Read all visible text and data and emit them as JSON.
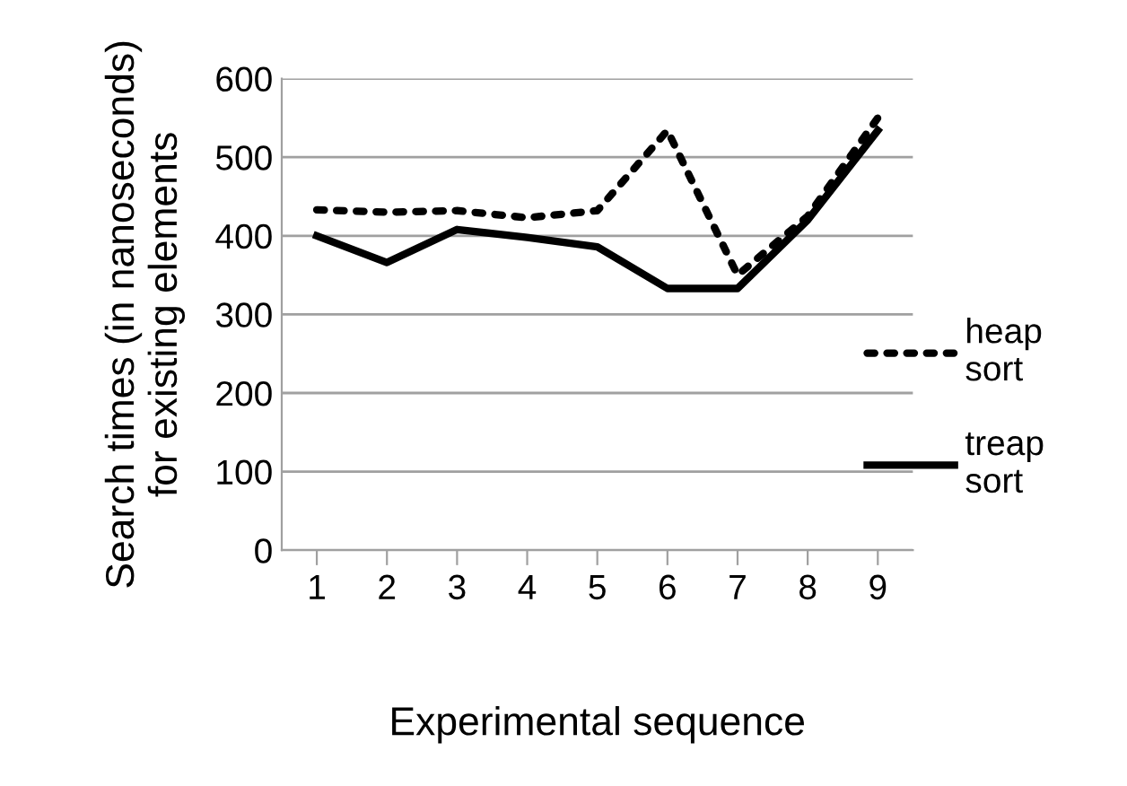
{
  "chart_data": {
    "type": "line",
    "xlabel": "Experimental sequence",
    "ylabel": "Search times (in nanoseconds)\nfor existing elements",
    "categories": [
      "1",
      "2",
      "3",
      "4",
      "5",
      "6",
      "7",
      "8",
      "9"
    ],
    "series": [
      {
        "name": "heap\nsort",
        "color": "#000000",
        "line_style": "dotted",
        "values": [
          433,
          430,
          432,
          423,
          432,
          534,
          350,
          425,
          550
        ]
      },
      {
        "name": "treap\nsort",
        "color": "#000000",
        "line_style": "solid",
        "values": [
          400,
          366,
          408,
          398,
          386,
          333,
          333,
          420,
          534
        ]
      }
    ],
    "ylim": [
      0,
      600
    ],
    "yticks": [
      0,
      100,
      200,
      300,
      400,
      500,
      600
    ],
    "grid": "y",
    "legend": "right",
    "marker": "none"
  }
}
